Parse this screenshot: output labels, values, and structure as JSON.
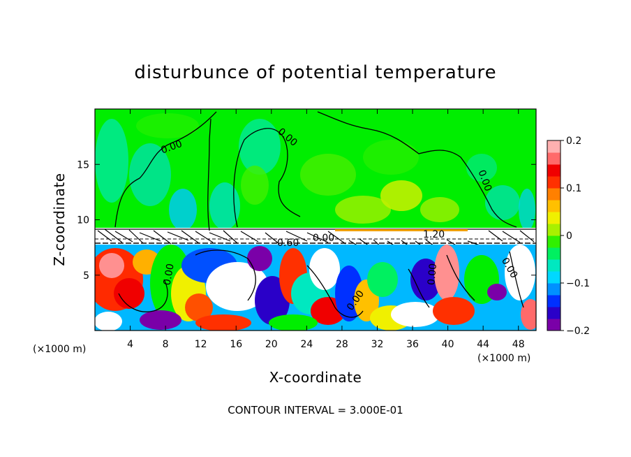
{
  "chart_data": {
    "type": "heatmap",
    "title": "disturbunce of potential temperature",
    "xlabel": "X-coordinate",
    "ylabel": "Z-coordinate",
    "x_unit_left": "(×1000 m)",
    "x_unit_right": "(×1000 m)",
    "xlim": [
      0,
      50
    ],
    "ylim": [
      0,
      20
    ],
    "xticks": [
      4,
      8,
      12,
      16,
      20,
      24,
      28,
      32,
      36,
      40,
      44,
      48
    ],
    "yticks": [
      5,
      10,
      15
    ],
    "colorbar": {
      "vmin": -0.2,
      "vmax": 0.2,
      "ticks": [
        "0.2",
        "0.1",
        "0",
        "−0.1",
        "−0.2"
      ],
      "colors": [
        "#7a00a8",
        "#2a00c8",
        "#0030ff",
        "#0090ff",
        "#00d8ff",
        "#00e8c0",
        "#00f060",
        "#30f000",
        "#a8f000",
        "#f0f000",
        "#ffc000",
        "#ff8000",
        "#ff3000",
        "#f00000",
        "#ff6a6a",
        "#ffb0b0"
      ]
    },
    "contour_labels": [
      "0.00",
      "0.00",
      "0.00",
      "0.00",
      "0.00",
      "0.00",
      "1.20",
      "-0.60",
      "0.00",
      "0.00"
    ],
    "contour_interval_text": "CONTOUR INTERVAL = 3.000E-01",
    "tropopause_z": 8.3
  }
}
